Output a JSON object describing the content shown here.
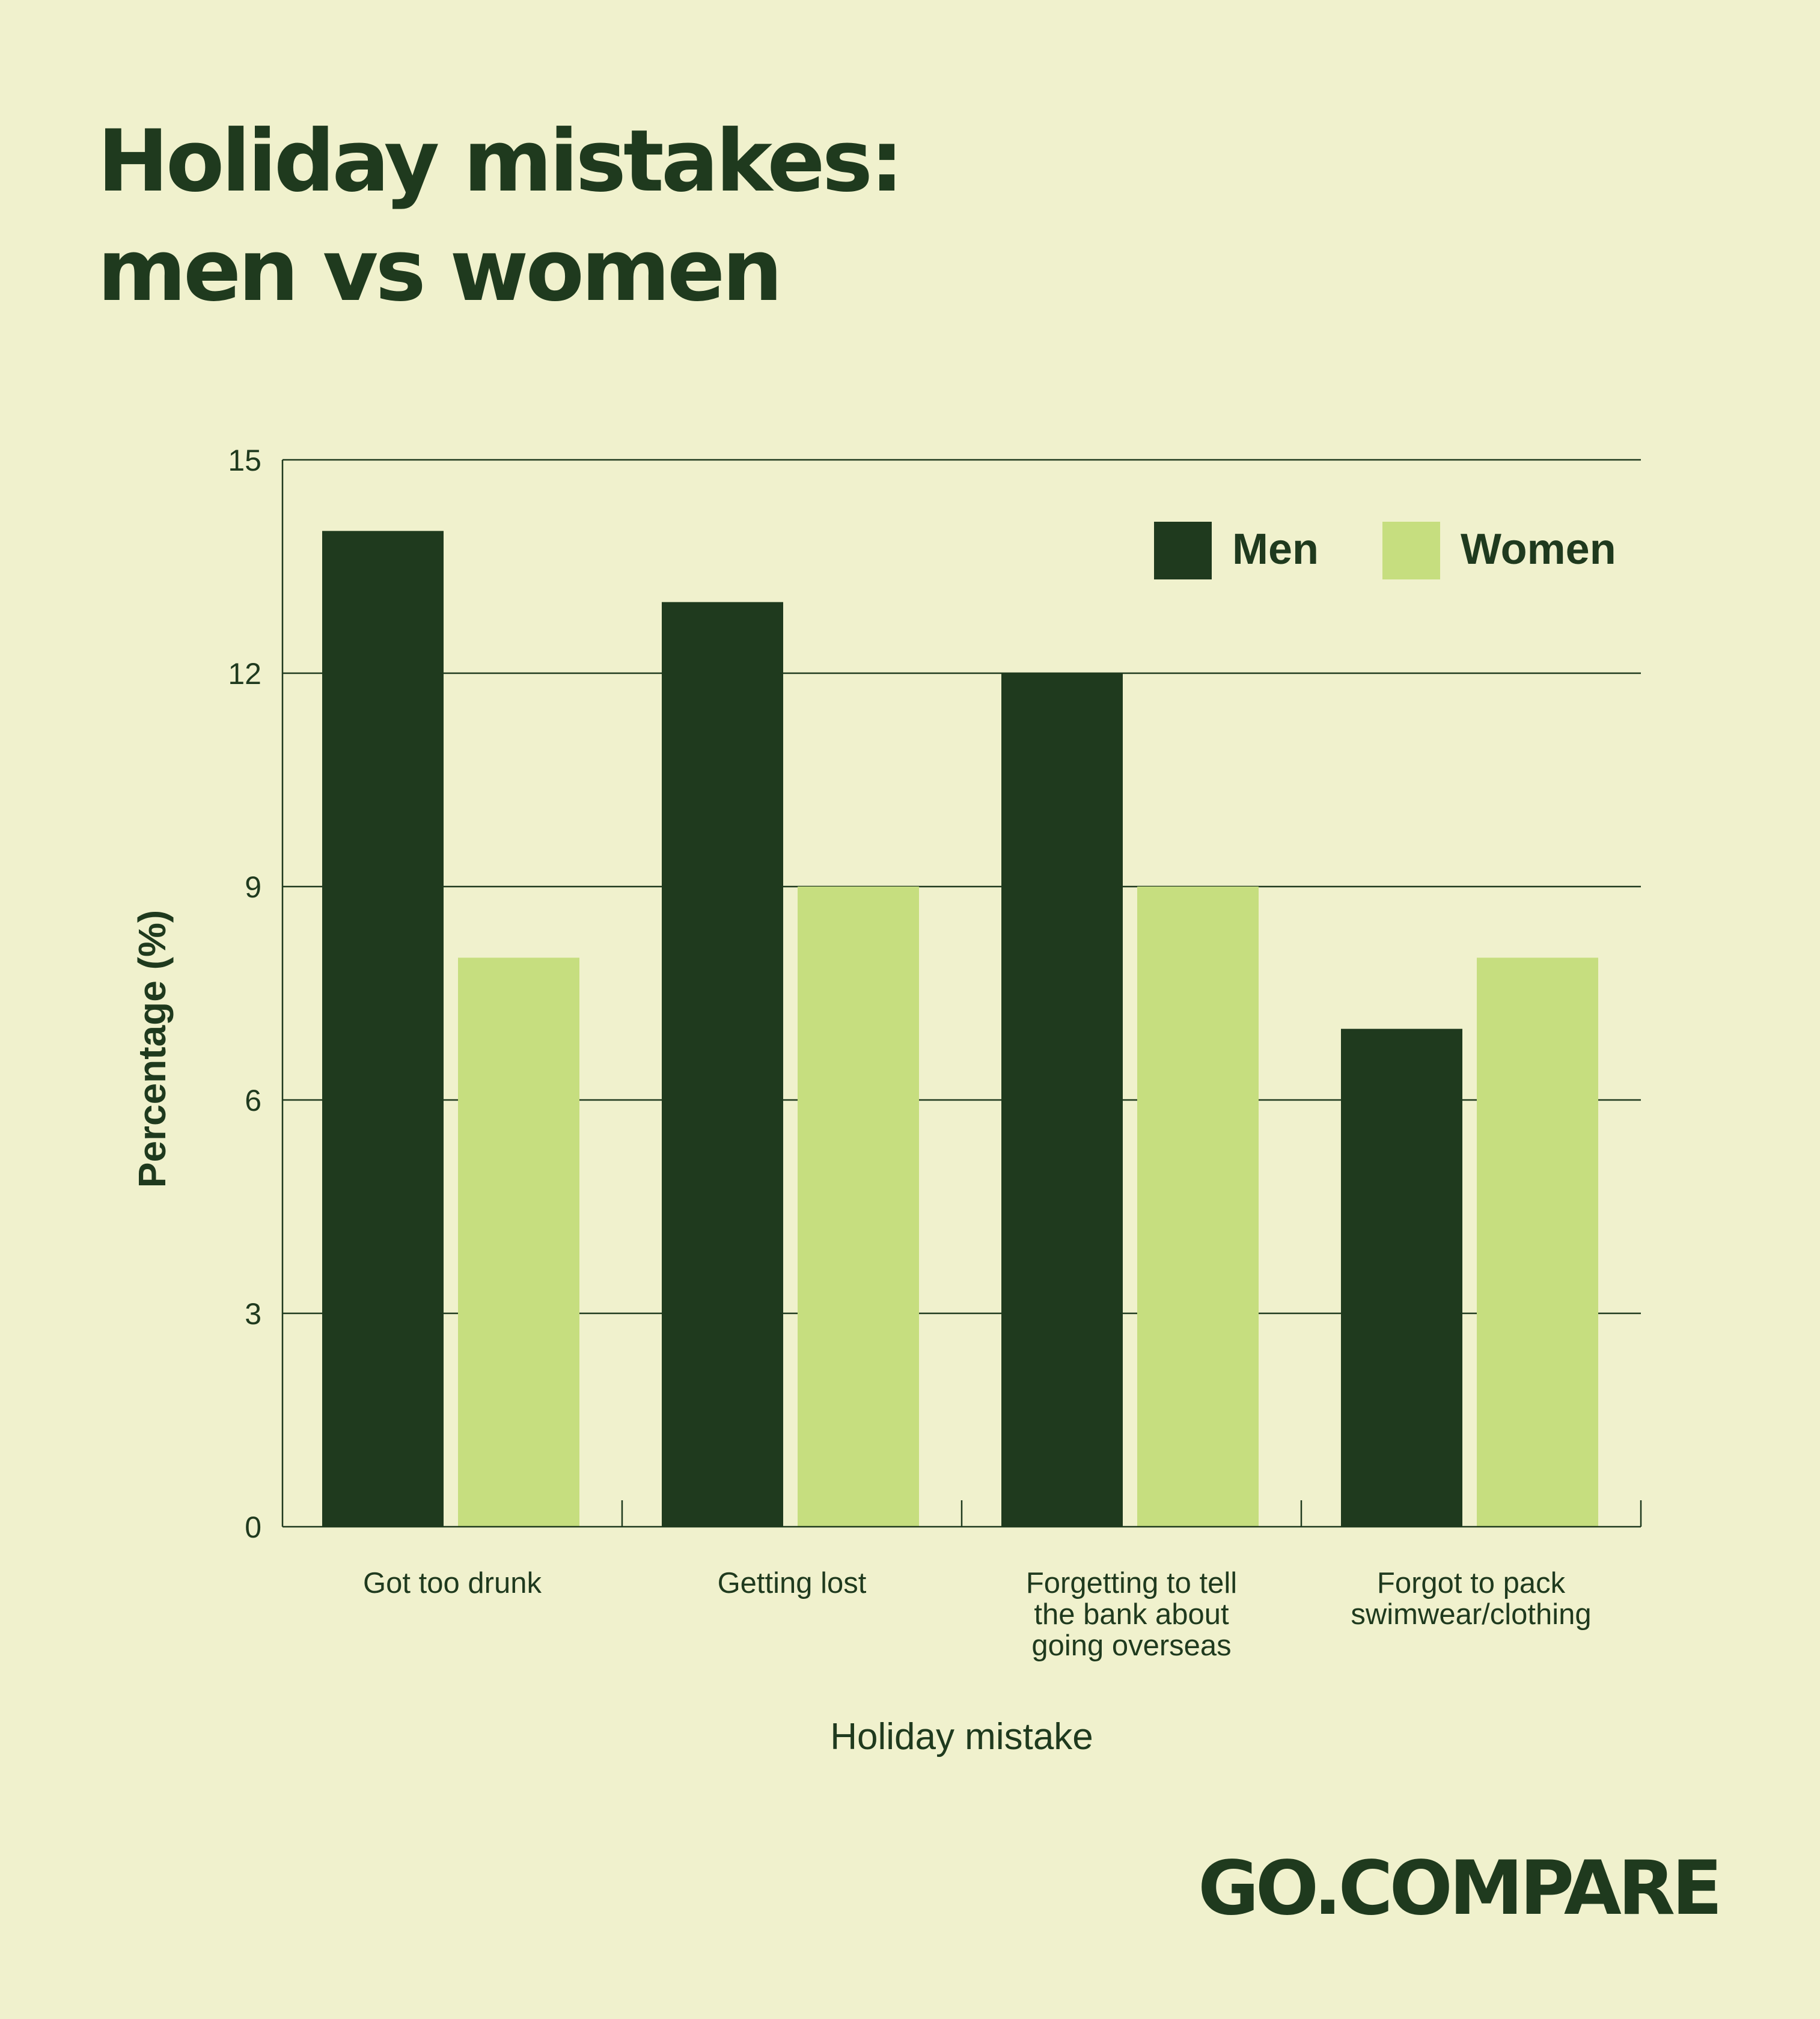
{
  "title_line1": "Holiday mistakes:",
  "title_line2": "men vs women",
  "brand": "GO.COMPARE",
  "colors": {
    "background": "#f0f1cd",
    "men": "#1f3a1e",
    "women": "#c6de7f",
    "text": "#1f3a1e"
  },
  "chart_data": {
    "type": "bar",
    "categories": [
      [
        "Got too drunk"
      ],
      [
        "Getting lost"
      ],
      [
        "Forgetting to tell",
        "the bank about",
        "going overseas"
      ],
      [
        "Forgot to pack",
        "swimwear/clothing"
      ]
    ],
    "series": [
      {
        "name": "Men",
        "values": [
          14,
          13,
          12,
          7
        ]
      },
      {
        "name": "Women",
        "values": [
          8,
          9,
          9,
          8
        ]
      }
    ],
    "xlabel": "Holiday mistake",
    "ylabel": "Percentage (%)",
    "ylim": [
      0,
      15
    ],
    "yticks": [
      0,
      3,
      6,
      9,
      12,
      15
    ],
    "grid": true,
    "legend": "top-right"
  }
}
